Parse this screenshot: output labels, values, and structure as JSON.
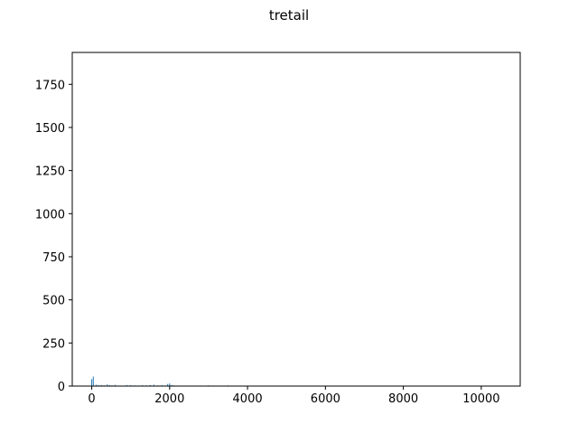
{
  "chart_data": {
    "type": "bar",
    "title": "tretail",
    "xlabel": "",
    "ylabel": "",
    "xlim": [
      -500,
      11000
    ],
    "ylim": [
      0,
      1935
    ],
    "xticks": [
      0,
      2000,
      4000,
      6000,
      8000,
      10000
    ],
    "yticks": [
      0,
      250,
      500,
      750,
      1000,
      1250,
      1500,
      1750
    ],
    "grid": false,
    "bar_color": "#1f77b4",
    "x": [
      0,
      40,
      120,
      180,
      250,
      320,
      400,
      460,
      520,
      600,
      680,
      900,
      1000,
      1100,
      1200,
      1300,
      1400,
      1500,
      1600,
      1700,
      1800,
      1900,
      1950,
      2000,
      2050,
      2100,
      2800,
      2900,
      3000,
      3100,
      3200,
      3300,
      3500,
      5300,
      5500,
      5700
    ],
    "values": [
      40,
      55,
      8,
      5,
      6,
      4,
      10,
      5,
      4,
      7,
      3,
      6,
      5,
      4,
      3,
      5,
      4,
      6,
      8,
      4,
      5,
      3,
      12,
      15,
      6,
      4,
      3,
      2,
      4,
      3,
      2,
      3,
      4,
      2,
      3,
      2
    ]
  }
}
